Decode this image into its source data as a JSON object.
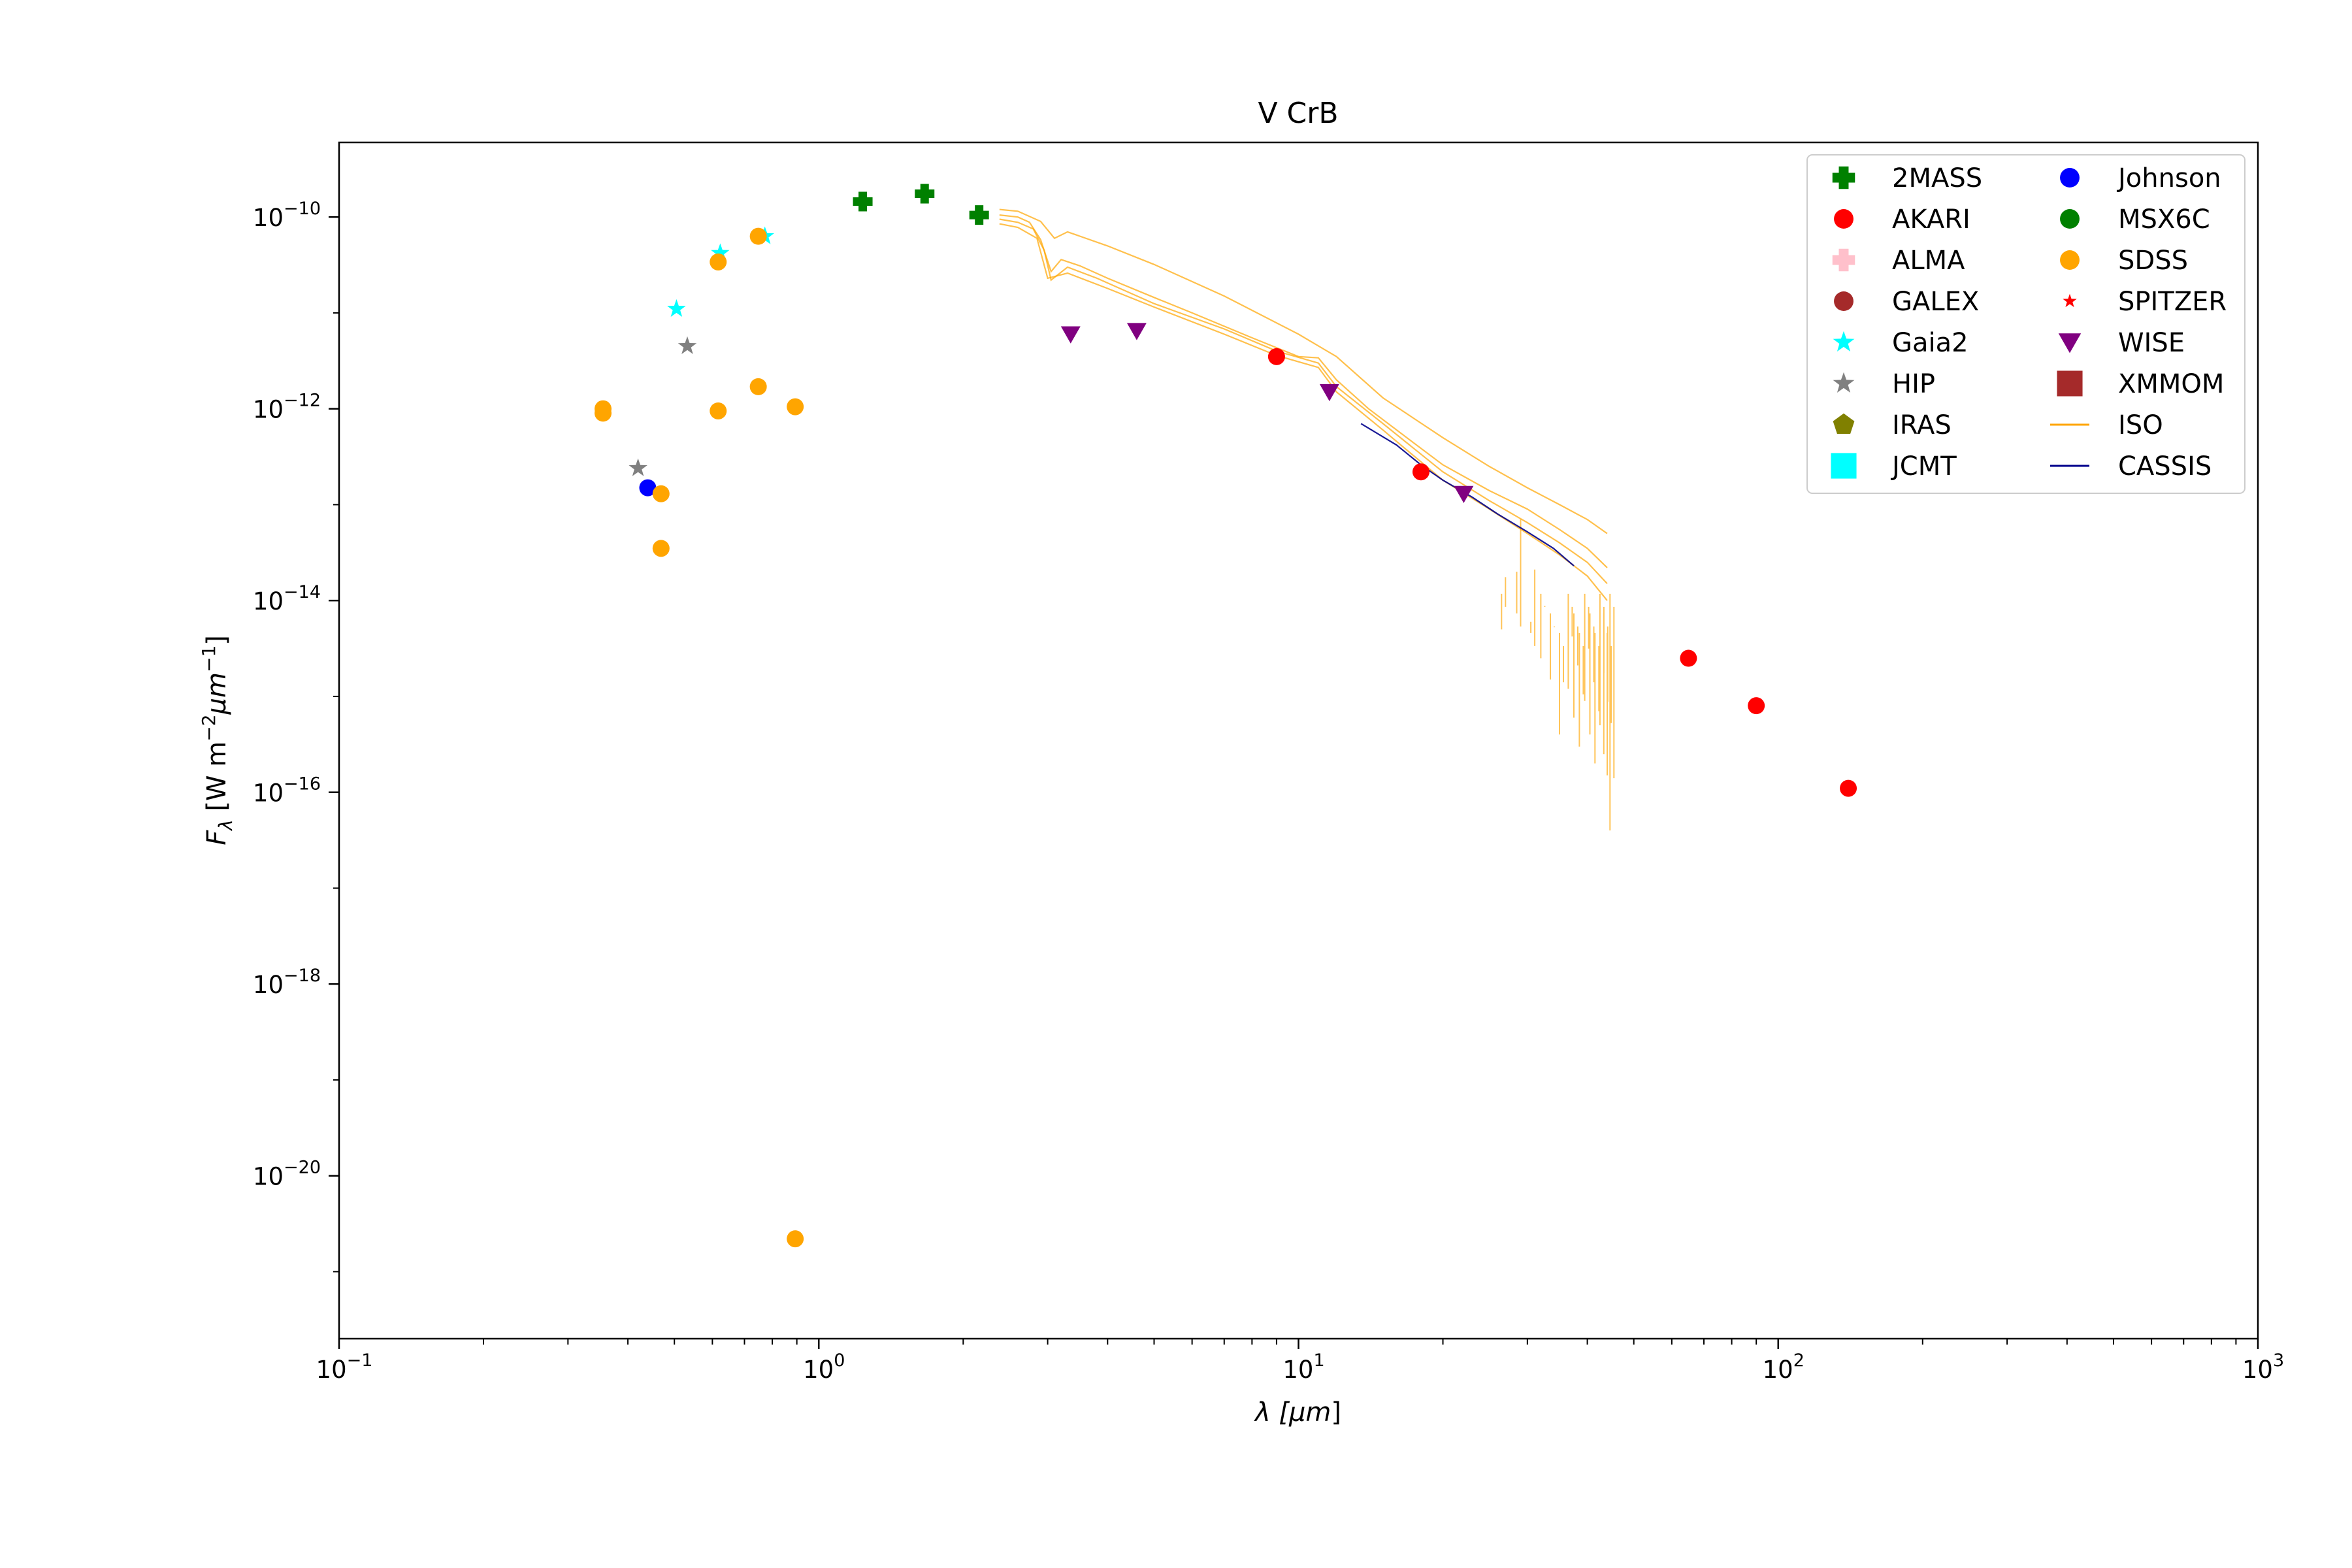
{
  "chart_data": {
    "type": "scatter",
    "title": "V CrB",
    "x_scale": "log",
    "y_scale": "log",
    "xlim": [
      0.1,
      1000
    ],
    "ylim": [
      2e-22,
      6e-10
    ],
    "x_ticks": [
      {
        "value": 0.1,
        "base": "10",
        "exp": "−1"
      },
      {
        "value": 1,
        "base": "10",
        "exp": "0"
      },
      {
        "value": 10,
        "base": "10",
        "exp": "1"
      },
      {
        "value": 100,
        "base": "10",
        "exp": "2"
      },
      {
        "value": 1000,
        "base": "10",
        "exp": "3"
      }
    ],
    "y_ticks": [
      {
        "value": 1e-10,
        "base": "10",
        "exp": "−10"
      },
      {
        "value": 1e-12,
        "base": "10",
        "exp": "−12"
      },
      {
        "value": 1e-14,
        "base": "10",
        "exp": "−14"
      },
      {
        "value": 1e-16,
        "base": "10",
        "exp": "−16"
      },
      {
        "value": 1e-18,
        "base": "10",
        "exp": "−18"
      },
      {
        "value": 1e-20,
        "base": "10",
        "exp": "−20"
      }
    ],
    "xlabel": {
      "main": "λ [",
      "unit": "μm",
      "end": "]"
    },
    "ylabel": {
      "main": "F",
      "sub": "λ",
      "rest1": " [W m",
      "sup1": "−2",
      "unit": "μm",
      "sup2": "−1",
      "end": "]"
    },
    "legend_position": "upper right",
    "series": [
      {
        "name": "2MASS",
        "marker": "plus",
        "color": "#008000",
        "points": [
          [
            1.235,
            1.45e-10
          ],
          [
            1.662,
            1.75e-10
          ],
          [
            2.159,
            1.05e-10
          ]
        ]
      },
      {
        "name": "AKARI",
        "marker": "circle",
        "color": "#ff0000",
        "points": [
          [
            9.0,
            3.5e-12
          ],
          [
            18.0,
            2.2e-13
          ],
          [
            65.0,
            2.5e-15
          ],
          [
            90.0,
            8e-16
          ],
          [
            140.0,
            1.1e-16
          ]
        ]
      },
      {
        "name": "ALMA",
        "marker": "plus",
        "color": "#ffc0cb",
        "points": []
      },
      {
        "name": "GALEX",
        "marker": "circle",
        "color": "#a52a2a",
        "points": []
      },
      {
        "name": "Gaia2",
        "marker": "star",
        "color": "#00ffff",
        "points": [
          [
            0.505,
            1.1e-11
          ],
          [
            0.623,
            4.2e-11
          ],
          [
            0.772,
            6.3e-11
          ]
        ]
      },
      {
        "name": "HIP",
        "marker": "star",
        "color": "#808080",
        "points": [
          [
            0.42,
            2.4e-13
          ],
          [
            0.532,
            4.5e-12
          ]
        ]
      },
      {
        "name": "IRAS",
        "marker": "pentagon",
        "color": "#808000",
        "points": []
      },
      {
        "name": "JCMT",
        "marker": "square",
        "color": "#00ffff",
        "points": []
      },
      {
        "name": "Johnson",
        "marker": "circle",
        "color": "#0000ff",
        "points": [
          [
            0.44,
            1.5e-13
          ]
        ]
      },
      {
        "name": "MSX6C",
        "marker": "circle",
        "color": "#008000",
        "points": []
      },
      {
        "name": "SDSS",
        "marker": "circle",
        "color": "#ffa500",
        "points": [
          [
            0.355,
            1e-12
          ],
          [
            0.355,
            9e-13
          ],
          [
            0.469,
            1.3e-13
          ],
          [
            0.469,
            3.5e-14
          ],
          [
            0.617,
            3.4e-11
          ],
          [
            0.617,
            9.5e-13
          ],
          [
            0.748,
            6.3e-11
          ],
          [
            0.748,
            1.7e-12
          ],
          [
            0.893,
            1.05e-12
          ],
          [
            0.893,
            2.2e-21
          ]
        ]
      },
      {
        "name": "SPITZER",
        "marker": "star",
        "color": "#ff0000",
        "points": []
      },
      {
        "name": "WISE",
        "marker": "triangle-down",
        "color": "#800080",
        "points": [
          [
            3.35,
            6e-12
          ],
          [
            4.6,
            6.5e-12
          ],
          [
            11.6,
            1.5e-12
          ],
          [
            22.1,
            1.3e-13
          ]
        ]
      },
      {
        "name": "XMMOM",
        "marker": "square",
        "color": "#a52a2a",
        "points": []
      },
      {
        "name": "ISO",
        "marker": "line",
        "color": "#ffa500",
        "spectra": [
          [
            [
              2.38,
              1.05e-10
            ],
            [
              2.6,
              1e-10
            ],
            [
              2.75,
              8.8e-11
            ],
            [
              2.9,
              5.8e-11
            ],
            [
              3.05,
              2.7e-11
            ],
            [
              3.2,
              3.6e-11
            ],
            [
              3.5,
              3.1e-11
            ],
            [
              4.0,
              2.3e-11
            ],
            [
              5.0,
              1.45e-11
            ],
            [
              6.0,
              1e-11
            ],
            [
              8.0,
              5.5e-12
            ],
            [
              10.0,
              3.5e-12
            ],
            [
              11.0,
              3.4e-12
            ],
            [
              12.0,
              2e-12
            ],
            [
              14.0,
              1e-12
            ],
            [
              17.0,
              4.8e-13
            ],
            [
              20.0,
              2.6e-13
            ],
            [
              25.0,
              1.4e-13
            ],
            [
              30.0,
              9e-14
            ],
            [
              35.0,
              5.5e-14
            ],
            [
              40.0,
              3.5e-14
            ],
            [
              44.0,
              2.2e-14
            ]
          ],
          [
            [
              2.38,
              9.5e-11
            ],
            [
              2.6,
              8.8e-11
            ],
            [
              2.8,
              7.5e-11
            ],
            [
              2.95,
              4.5e-11
            ],
            [
              3.05,
              2.2e-11
            ],
            [
              3.3,
              3e-11
            ],
            [
              3.8,
              2.3e-11
            ],
            [
              5.0,
              1.25e-11
            ],
            [
              7.0,
              6.8e-12
            ],
            [
              9.0,
              4e-12
            ],
            [
              11.0,
              3e-12
            ],
            [
              12.0,
              1.7e-12
            ],
            [
              15.0,
              7e-13
            ],
            [
              20.0,
              2.2e-13
            ],
            [
              25.0,
              1.1e-13
            ],
            [
              30.0,
              6.5e-14
            ],
            [
              35.0,
              4e-14
            ],
            [
              40.0,
              2.5e-14
            ],
            [
              44.0,
              1.5e-14
            ]
          ],
          [
            [
              2.38,
              8.5e-11
            ],
            [
              2.6,
              7.8e-11
            ],
            [
              2.85,
              6e-11
            ],
            [
              3.0,
              2.3e-11
            ],
            [
              3.3,
              2.6e-11
            ],
            [
              4.0,
              1.8e-11
            ],
            [
              5.0,
              1.15e-11
            ],
            [
              7.0,
              6e-12
            ],
            [
              9.0,
              3.6e-12
            ],
            [
              11.0,
              2.7e-12
            ],
            [
              12.0,
              1.5e-12
            ],
            [
              15.0,
              6e-13
            ],
            [
              20.0,
              1.8e-13
            ],
            [
              25.0,
              9e-14
            ],
            [
              30.0,
              5e-14
            ],
            [
              35.0,
              3e-14
            ],
            [
              40.0,
              1.8e-14
            ],
            [
              44.0,
              1e-14
            ]
          ],
          [
            [
              2.38,
              1.2e-10
            ],
            [
              2.6,
              1.15e-10
            ],
            [
              2.9,
              9e-11
            ],
            [
              3.1,
              6e-11
            ],
            [
              3.3,
              7e-11
            ],
            [
              4.0,
              5e-11
            ],
            [
              5.0,
              3.2e-11
            ],
            [
              7.0,
              1.5e-11
            ],
            [
              10.0,
              6e-12
            ],
            [
              12.0,
              3.5e-12
            ],
            [
              15.0,
              1.3e-12
            ],
            [
              20.0,
              5e-13
            ],
            [
              25.0,
              2.5e-13
            ],
            [
              30.0,
              1.5e-13
            ],
            [
              35.0,
              1e-13
            ],
            [
              40.0,
              7e-14
            ],
            [
              44.0,
              5e-14
            ]
          ]
        ],
        "noise": [
          [
            26.5,
            5e-15
          ],
          [
            28.5,
            2e-14
          ],
          [
            30.5,
            6e-15
          ],
          [
            32.0,
            2.5e-15
          ],
          [
            33.5,
            1.5e-15
          ],
          [
            35.0,
            4e-16
          ],
          [
            36.5,
            1.2e-15
          ],
          [
            37.5,
            6e-16
          ],
          [
            38.5,
            3e-16
          ],
          [
            39.5,
            9e-16
          ],
          [
            40.5,
            4e-16
          ],
          [
            41.5,
            2e-16
          ],
          [
            42.5,
            5e-16
          ],
          [
            43.3,
            2.5e-16
          ],
          [
            44.0,
            1.5e-16
          ],
          [
            44.6,
            4e-17
          ]
        ]
      },
      {
        "name": "CASSIS",
        "marker": "line",
        "color": "#00008b",
        "spectra": [
          [
            [
              13.5,
              7e-13
            ],
            [
              16.0,
              4.2e-13
            ],
            [
              18.0,
              2.6e-13
            ],
            [
              20.0,
              1.8e-13
            ],
            [
              23.0,
              1.2e-13
            ],
            [
              26.0,
              8e-14
            ],
            [
              30.0,
              5.2e-14
            ],
            [
              34.0,
              3.5e-14
            ],
            [
              37.5,
              2.3e-14
            ]
          ]
        ]
      }
    ]
  }
}
